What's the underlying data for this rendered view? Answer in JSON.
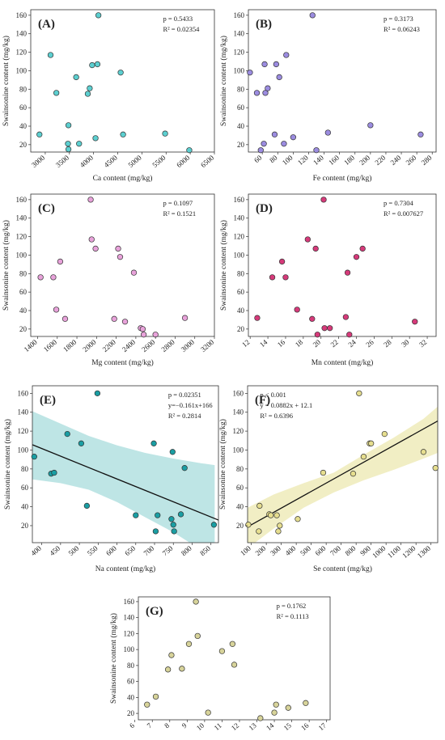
{
  "chart_data": [
    {
      "type": "scatter",
      "panel_label": "(A)",
      "xlabel": "Ca content (mg/kg)",
      "ylabel": "Swainsonine content (mg/kg)",
      "xlim": [
        2700,
        6500
      ],
      "ylim": [
        12,
        166
      ],
      "xticks": [
        3000,
        3500,
        4000,
        4500,
        5000,
        5500,
        6000,
        6500
      ],
      "yticks": [
        20,
        40,
        60,
        80,
        100,
        120,
        140,
        160
      ],
      "stats": [
        "p = 0.5433",
        "R² = 0.02354"
      ],
      "point_color": "#5ccfd0",
      "points": [
        [
          2880,
          31
        ],
        [
          3110,
          117
        ],
        [
          3230,
          76
        ],
        [
          3480,
          41
        ],
        [
          3470,
          21
        ],
        [
          3480,
          15
        ],
        [
          3640,
          93
        ],
        [
          3700,
          21
        ],
        [
          3880,
          75
        ],
        [
          3920,
          81
        ],
        [
          3970,
          106
        ],
        [
          4080,
          107
        ],
        [
          4040,
          27
        ],
        [
          4100,
          160
        ],
        [
          4560,
          98
        ],
        [
          4610,
          31
        ],
        [
          5480,
          32
        ],
        [
          5980,
          14
        ]
      ]
    },
    {
      "type": "scatter",
      "panel_label": "(B)",
      "xlabel": "Fe content (mg/kg)",
      "ylabel": "Swainsonine content (mg/kg)",
      "xlim": [
        42,
        285
      ],
      "ylim": [
        12,
        166
      ],
      "xticks": [
        60,
        80,
        100,
        120,
        140,
        160,
        180,
        200,
        220,
        240,
        260,
        280
      ],
      "yticks": [
        20,
        40,
        60,
        80,
        100,
        120,
        140,
        160
      ],
      "stats": [
        "p = 0.3173",
        "R² = 0.06243"
      ],
      "point_color": "#9b8ce0",
      "points": [
        [
          44,
          98
        ],
        [
          53,
          76
        ],
        [
          58,
          14
        ],
        [
          62,
          21
        ],
        [
          63,
          107
        ],
        [
          64,
          76
        ],
        [
          67,
          81
        ],
        [
          76,
          31
        ],
        [
          78,
          107
        ],
        [
          82,
          93
        ],
        [
          88,
          21
        ],
        [
          91,
          117
        ],
        [
          100,
          28
        ],
        [
          125,
          160
        ],
        [
          130,
          14
        ],
        [
          145,
          33
        ],
        [
          200,
          41
        ],
        [
          265,
          31
        ]
      ]
    },
    {
      "type": "scatter",
      "panel_label": "(C)",
      "xlabel": "Mg content (mg/kg)",
      "ylabel": "Swainsonine content (mg/kg)",
      "xlim": [
        1330,
        3200
      ],
      "ylim": [
        12,
        166
      ],
      "xticks": [
        1400,
        1600,
        1800,
        2000,
        2200,
        2400,
        2600,
        2800,
        3000,
        3200
      ],
      "yticks": [
        20,
        40,
        60,
        80,
        100,
        120,
        140,
        160
      ],
      "stats": [
        "p = 0.1097",
        "R² = 0.1521"
      ],
      "point_color": "#e8a2da",
      "points": [
        [
          1430,
          76
        ],
        [
          1560,
          76
        ],
        [
          1590,
          41
        ],
        [
          1630,
          93
        ],
        [
          1680,
          31
        ],
        [
          1940,
          160
        ],
        [
          1950,
          117
        ],
        [
          1990,
          107
        ],
        [
          2180,
          31
        ],
        [
          2220,
          107
        ],
        [
          2240,
          98
        ],
        [
          2290,
          28
        ],
        [
          2380,
          81
        ],
        [
          2450,
          21
        ],
        [
          2470,
          20
        ],
        [
          2480,
          14
        ],
        [
          2600,
          14
        ],
        [
          2900,
          32
        ]
      ]
    },
    {
      "type": "scatter",
      "panel_label": "(D)",
      "xlabel": "Mn content (mg/kg)",
      "ylabel": "Swainsonine content (mg/kg)",
      "xlim": [
        11.8,
        33
      ],
      "ylim": [
        12,
        166
      ],
      "xticks": [
        12,
        14,
        16,
        18,
        20,
        22,
        24,
        26,
        28,
        30,
        32
      ],
      "yticks": [
        20,
        40,
        60,
        80,
        100,
        120,
        140,
        160
      ],
      "stats": [
        "p = 0.7304",
        "R² = 0.007627"
      ],
      "point_color": "#d63a7a",
      "points": [
        [
          12.8,
          32
        ],
        [
          14.5,
          76
        ],
        [
          15.6,
          93
        ],
        [
          16.0,
          76
        ],
        [
          17.3,
          41
        ],
        [
          18.5,
          117
        ],
        [
          19.0,
          31
        ],
        [
          19.4,
          107
        ],
        [
          19.6,
          14
        ],
        [
          20.3,
          160
        ],
        [
          20.4,
          21
        ],
        [
          21.0,
          21
        ],
        [
          22.8,
          33
        ],
        [
          23.0,
          81
        ],
        [
          23.2,
          14
        ],
        [
          24.0,
          98
        ],
        [
          24.7,
          107
        ],
        [
          30.6,
          28
        ]
      ]
    },
    {
      "type": "scatter",
      "panel_label": "(E)",
      "xlabel": "Na content (mg/kg)",
      "ylabel": "Swainsonine content (mg/kg)",
      "xlim": [
        375,
        870
      ],
      "ylim": [
        2,
        168
      ],
      "xticks": [
        400,
        450,
        500,
        550,
        600,
        650,
        700,
        750,
        800,
        850
      ],
      "yticks": [
        20,
        40,
        60,
        80,
        100,
        120,
        140,
        160
      ],
      "stats": [
        "p = 0.02351",
        "y=−0.161x+166",
        "R² = 0.2814"
      ],
      "point_color": "#1a9ea3",
      "band_color": "#a8dcdc",
      "fit": {
        "slope": -0.161,
        "intercept": 166
      },
      "ci_band": {
        "x": [
          375,
          450,
          525,
          600,
          675,
          750,
          825,
          860
        ],
        "lower": [
          69,
          65,
          58,
          45,
          29,
          13,
          -6,
          -15
        ],
        "upper": [
          141,
          128,
          115,
          105,
          97,
          91,
          86,
          84
        ]
      },
      "points": [
        [
          380,
          93
        ],
        [
          425,
          75
        ],
        [
          433,
          76
        ],
        [
          468,
          117
        ],
        [
          505,
          107
        ],
        [
          520,
          41
        ],
        [
          548,
          160
        ],
        [
          650,
          31
        ],
        [
          698,
          107
        ],
        [
          703,
          14
        ],
        [
          708,
          31
        ],
        [
          748,
          98
        ],
        [
          750,
          21
        ],
        [
          752,
          14
        ],
        [
          745,
          27
        ],
        [
          770,
          32
        ],
        [
          780,
          81
        ],
        [
          858,
          21
        ]
      ]
    },
    {
      "type": "scatter",
      "panel_label": "(F)",
      "xlabel": "Se content (mg/kg)",
      "ylabel": "Swainsonine content (mg/kg)",
      "xlim": [
        75,
        1345
      ],
      "ylim": [
        2,
        168
      ],
      "xticks": [
        100,
        200,
        300,
        400,
        500,
        600,
        700,
        800,
        900,
        1000,
        1100,
        1200,
        1300
      ],
      "yticks": [
        20,
        40,
        60,
        80,
        100,
        120,
        140,
        160
      ],
      "stats": [
        "p < 0.001",
        "y = 0.0882x + 12.1",
        "R² = 0.6396"
      ],
      "point_color": "#e6de8f",
      "band_color": "#ece8b0",
      "fit": {
        "slope": 0.0882,
        "intercept": 12.1
      },
      "ci_band": {
        "x": [
          75,
          250,
          450,
          650,
          850,
          1050,
          1250,
          1345
        ],
        "lower": [
          -4,
          17,
          39,
          55,
          68,
          79,
          91,
          97
        ],
        "upper": [
          39,
          53,
          65,
          76,
          95,
          113,
          133,
          146
        ]
      },
      "points": [
        [
          80,
          21
        ],
        [
          150,
          14
        ],
        [
          155,
          41
        ],
        [
          220,
          32
        ],
        [
          230,
          31
        ],
        [
          270,
          31
        ],
        [
          280,
          14
        ],
        [
          290,
          20
        ],
        [
          410,
          27
        ],
        [
          580,
          76
        ],
        [
          780,
          75
        ],
        [
          820,
          160
        ],
        [
          850,
          93
        ],
        [
          890,
          107
        ],
        [
          900,
          107
        ],
        [
          990,
          117
        ],
        [
          1250,
          98
        ],
        [
          1330,
          81
        ]
      ]
    },
    {
      "type": "scatter",
      "panel_label": "(G)",
      "xlabel": "Zn content (mg/kg)",
      "ylabel": "Swainsonine content (mg/kg)",
      "xlim": [
        6.2,
        17.2
      ],
      "ylim": [
        12,
        166
      ],
      "xticks": [
        6,
        7,
        8,
        9,
        10,
        11,
        12,
        13,
        14,
        15,
        16,
        17
      ],
      "yticks": [
        20,
        40,
        60,
        80,
        100,
        120,
        140,
        160
      ],
      "stats": [
        "p = 0.1762",
        "R² = 0.1113"
      ],
      "point_color": "#d7d39a",
      "points": [
        [
          6.7,
          31
        ],
        [
          7.2,
          41
        ],
        [
          7.9,
          75
        ],
        [
          8.1,
          93
        ],
        [
          8.7,
          76
        ],
        [
          9.1,
          107
        ],
        [
          9.5,
          160
        ],
        [
          9.6,
          117
        ],
        [
          10.2,
          21
        ],
        [
          11.0,
          98
        ],
        [
          11.6,
          107
        ],
        [
          11.7,
          81
        ],
        [
          13.2,
          14
        ],
        [
          14.0,
          21
        ],
        [
          14.1,
          31
        ],
        [
          14.8,
          27
        ],
        [
          15.8,
          33
        ]
      ]
    }
  ]
}
